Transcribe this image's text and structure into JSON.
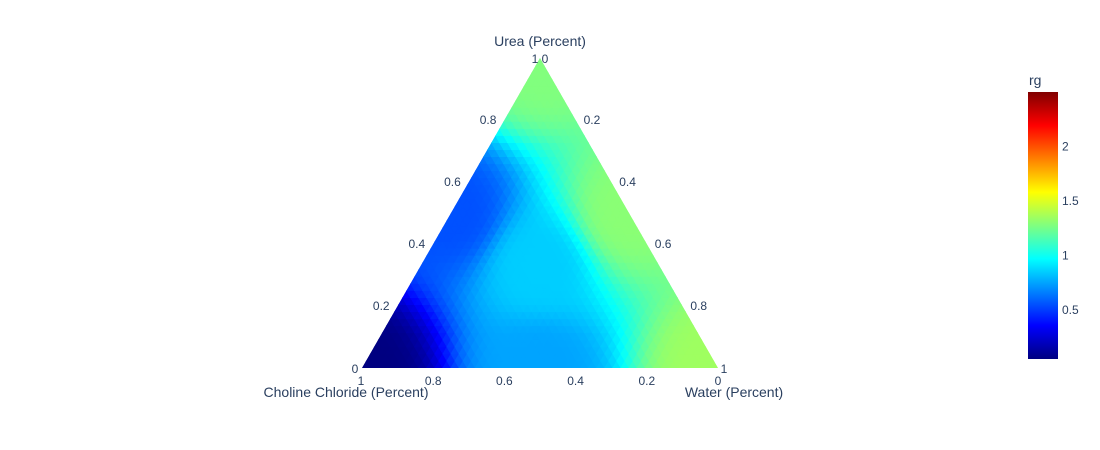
{
  "chart_data": {
    "type": "ternary-contour",
    "axes": {
      "a": {
        "title": "Urea (Percent)",
        "ticks": [
          {
            "value": 0.2,
            "label": "0.2"
          },
          {
            "value": 0.4,
            "label": "0.4"
          },
          {
            "value": 0.6,
            "label": "0.6"
          },
          {
            "value": 0.8,
            "label": "0.8"
          }
        ],
        "end_labels": {
          "zero": "0",
          "one": "1"
        }
      },
      "b": {
        "title": "Choline Chloride (Percent)",
        "ticks": [
          {
            "value": 0.8,
            "label": "0.8"
          },
          {
            "value": 0.6,
            "label": "0.6"
          },
          {
            "value": 0.4,
            "label": "0.4"
          },
          {
            "value": 0.2,
            "label": "0.2"
          }
        ],
        "end_labels": {
          "zero": "0",
          "one": "1"
        }
      },
      "c": {
        "title": "Water (Percent)",
        "ticks": [
          {
            "value": 0.2,
            "label": "0.2"
          },
          {
            "value": 0.4,
            "label": "0.4"
          },
          {
            "value": 0.6,
            "label": "0.6"
          },
          {
            "value": 0.8,
            "label": "0.8"
          }
        ],
        "end_labels": {
          "zero": "0",
          "one": "1"
        }
      }
    },
    "field_samples": [
      {
        "urea": 1.0,
        "choline_chloride": 0.0,
        "water": 0.0,
        "rg": 1.28
      },
      {
        "urea": 0.0,
        "choline_chloride": 1.0,
        "water": 0.0,
        "rg": 0.05
      },
      {
        "urea": 0.0,
        "choline_chloride": 0.0,
        "water": 1.0,
        "rg": 1.35
      },
      {
        "urea": 0.5,
        "choline_chloride": 0.5,
        "water": 0.0,
        "rg": 0.55
      },
      {
        "urea": 0.5,
        "choline_chloride": 0.0,
        "water": 0.5,
        "rg": 1.3
      },
      {
        "urea": 0.0,
        "choline_chloride": 0.5,
        "water": 0.5,
        "rg": 0.75
      },
      {
        "urea": 0.33,
        "choline_chloride": 0.34,
        "water": 0.33,
        "rg": 0.85
      }
    ],
    "colorbar": {
      "title": "rg",
      "range": [
        0.05,
        2.5
      ],
      "ticks": [
        {
          "value": 0.5,
          "label": "0.5"
        },
        {
          "value": 1,
          "label": "1"
        },
        {
          "value": 1.5,
          "label": "1.5"
        },
        {
          "value": 2,
          "label": "2"
        }
      ],
      "colorscale": [
        [
          0.0,
          "#000080"
        ],
        [
          0.125,
          "#0000ff"
        ],
        [
          0.375,
          "#00ffff"
        ],
        [
          0.625,
          "#ffff00"
        ],
        [
          0.875,
          "#ff0000"
        ],
        [
          1.0,
          "#800000"
        ]
      ]
    },
    "grid": false,
    "legend": "none"
  }
}
